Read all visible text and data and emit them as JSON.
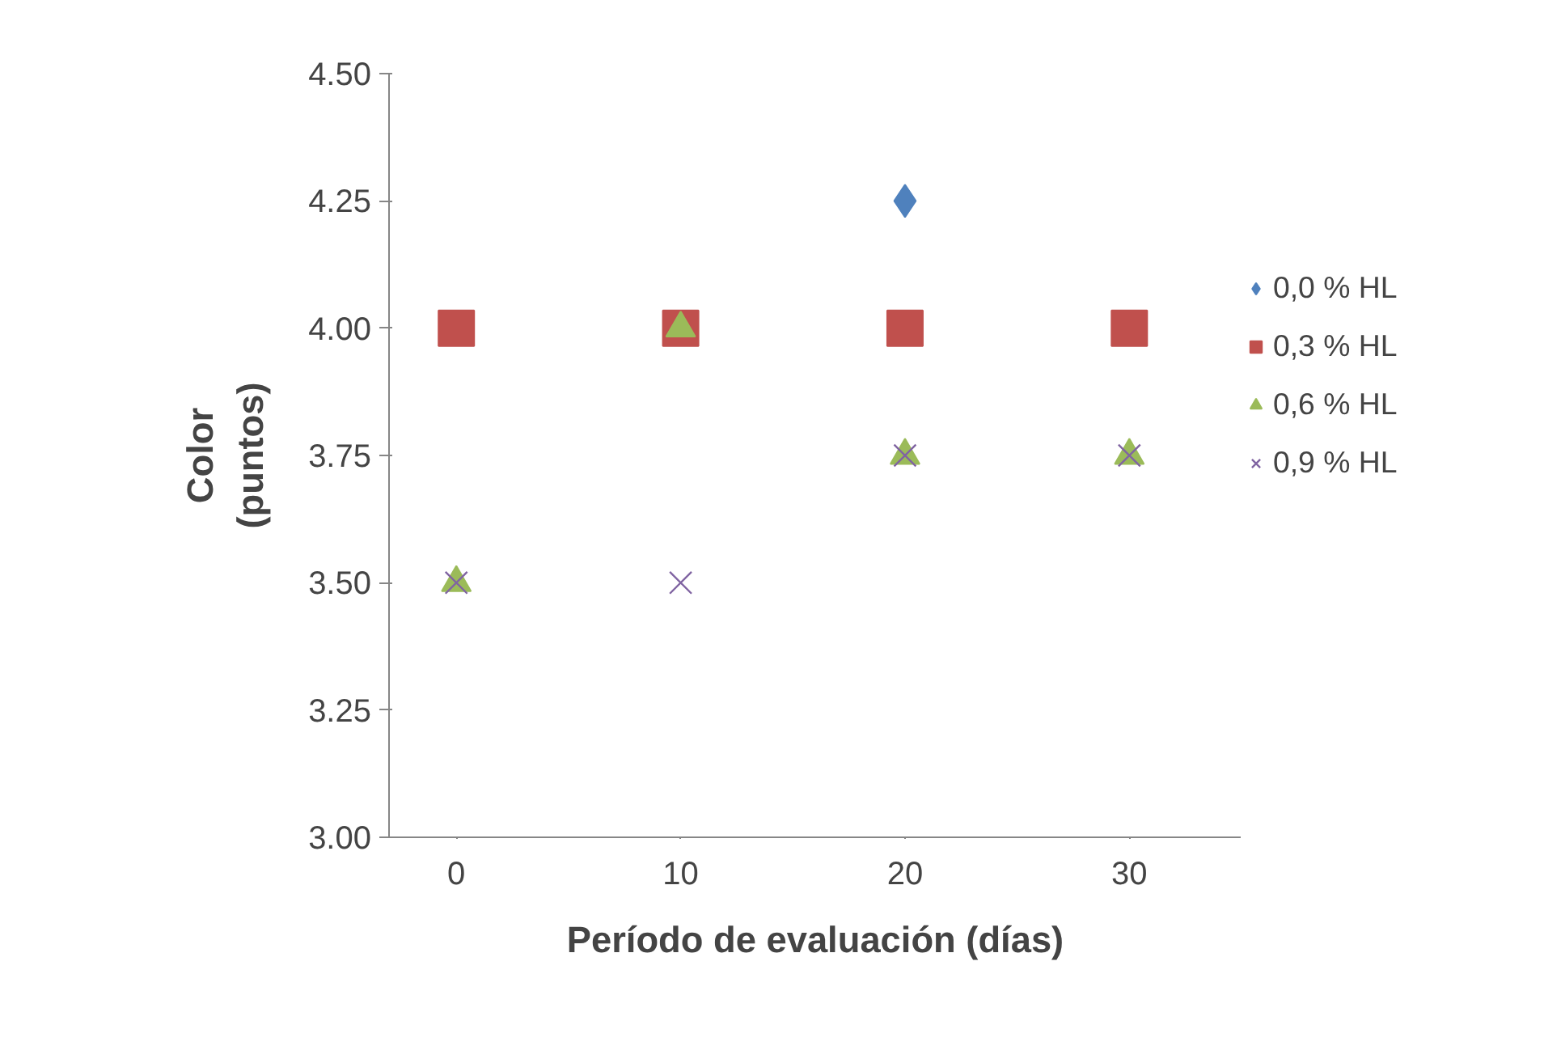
{
  "chart_data": {
    "type": "scatter",
    "xlabel": "Período de evaluación (días)",
    "ylabel": "Color\n(puntos)",
    "x": [
      0,
      10,
      20,
      30
    ],
    "xlim": [
      -3,
      35
    ],
    "xticks": [
      0,
      10,
      20,
      30
    ],
    "ylim": [
      3.0,
      4.5
    ],
    "yticks": [
      {
        "value": 3.0,
        "label": "3.00"
      },
      {
        "value": 3.25,
        "label": "3.25"
      },
      {
        "value": 3.5,
        "label": "3.50"
      },
      {
        "value": 3.75,
        "label": "3.75"
      },
      {
        "value": 4.0,
        "label": "4.00"
      },
      {
        "value": 4.25,
        "label": "4.25"
      },
      {
        "value": 4.5,
        "label": "4.50"
      }
    ],
    "grid": false,
    "legend": "right",
    "series": [
      {
        "name": "0,0 % HL",
        "color": "#4f81bd",
        "marker": "diamond",
        "values": [
          null,
          null,
          4.25,
          null
        ]
      },
      {
        "name": "0,3 % HL",
        "color": "#c0504d",
        "marker": "square",
        "values": [
          4.0,
          4.0,
          4.0,
          4.0
        ]
      },
      {
        "name": "0,6 % HL",
        "color": "#9bbb59",
        "marker": "triangle",
        "values": [
          3.5,
          4.0,
          3.75,
          3.75
        ]
      },
      {
        "name": "0,9 % HL",
        "color": "#8064a2",
        "marker": "cross",
        "values": [
          3.5,
          3.5,
          3.75,
          3.75
        ]
      }
    ]
  }
}
